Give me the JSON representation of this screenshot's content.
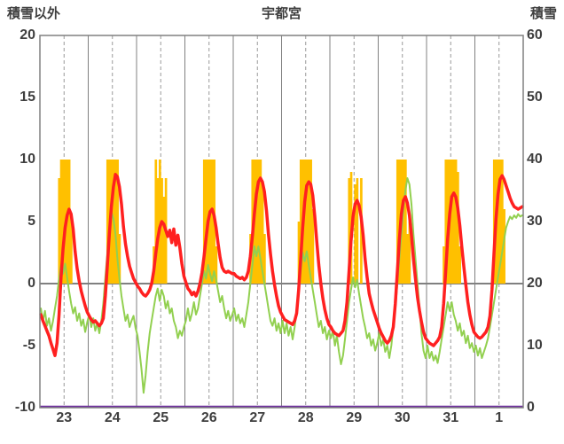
{
  "header": {
    "left_axis_title": "積雪以外",
    "title": "宇都宮",
    "right_axis_title": "積雪"
  },
  "chart_data": {
    "type": "line",
    "title": "宇都宮",
    "left_axis": {
      "label": "積雪以外",
      "min": -10,
      "max": 20,
      "ticks": [
        20,
        15,
        10,
        5,
        0,
        -5,
        -10
      ]
    },
    "right_axis": {
      "label": "積雪",
      "min": 0,
      "max": 60,
      "ticks": [
        60,
        50,
        40,
        30,
        20,
        10,
        0
      ]
    },
    "x_labels": [
      "23",
      "24",
      "25",
      "26",
      "27",
      "28",
      "29",
      "30",
      "31",
      "1"
    ],
    "hours_per_day": 24,
    "grid": {
      "line_color": "#808080",
      "dashed_color": "#999999",
      "zero_line": true,
      "horizontal_gridlines": false
    },
    "series": [
      {
        "name": "sunshine-bars",
        "type": "bar",
        "axis": "left",
        "color": "#FFC000",
        "values": [
          0,
          0,
          0,
          0,
          0,
          0,
          0,
          0,
          0,
          8.5,
          10,
          10,
          10,
          10,
          10,
          5,
          0,
          0,
          0,
          0,
          0,
          0,
          0,
          0,
          0,
          0,
          0,
          0,
          0,
          0,
          0,
          0,
          0,
          10,
          10,
          10,
          10,
          10,
          10,
          4,
          0,
          0,
          0,
          0,
          0,
          0,
          0,
          0,
          0,
          0,
          0,
          0,
          0,
          0,
          0,
          0,
          3,
          10,
          8.5,
          10,
          8.5,
          7,
          8.5,
          0,
          0,
          0,
          0,
          0,
          0,
          0,
          0,
          0,
          0,
          0,
          0,
          0,
          0,
          0,
          0,
          0,
          0,
          10,
          10,
          10,
          10,
          10,
          10,
          3,
          0,
          0,
          0,
          0,
          0,
          0,
          0,
          0,
          0,
          0,
          0,
          0,
          0,
          0,
          0,
          0,
          4,
          10,
          10,
          10,
          10,
          10,
          8,
          4,
          0,
          0,
          0,
          0,
          0,
          0,
          0,
          0,
          0,
          0,
          0,
          0,
          0,
          0,
          0,
          0,
          5,
          10,
          10,
          10,
          10,
          10,
          10,
          6,
          0,
          0,
          0,
          0,
          0,
          0,
          0,
          0,
          0,
          0,
          0,
          0,
          0,
          0,
          0,
          0,
          0,
          8.5,
          9,
          0,
          8,
          8.5,
          0,
          8.5,
          0,
          0,
          0,
          0,
          0,
          0,
          0,
          0,
          0,
          0,
          0,
          0,
          0,
          0,
          0,
          0,
          0,
          10,
          10,
          10,
          10,
          10,
          4,
          5,
          0,
          0,
          0,
          0,
          0,
          0,
          0,
          0,
          0,
          0,
          0,
          0,
          0,
          0,
          0,
          0,
          3,
          10,
          10,
          10,
          10,
          10,
          10,
          9,
          3,
          0,
          0,
          0,
          0,
          0,
          0,
          0,
          0,
          0,
          0,
          0,
          0,
          0,
          0,
          0,
          0,
          10,
          10,
          10,
          10,
          10,
          6,
          0,
          0,
          0,
          0,
          0,
          0,
          0,
          0,
          0
        ]
      },
      {
        "name": "green-line",
        "type": "line",
        "axis": "left",
        "color": "#92D050",
        "width": 2,
        "values": [
          -2.0,
          -3.0,
          -2.2,
          -3.4,
          -2.8,
          -3.8,
          -3.0,
          -2.0,
          -1.0,
          0.4,
          1.5,
          0.8,
          1.6,
          0.5,
          -0.6,
          -1.6,
          -2.4,
          -1.9,
          -3.0,
          -2.4,
          -3.4,
          -2.9,
          -3.9,
          -3.1,
          -2.5,
          -3.5,
          -2.8,
          -3.8,
          -3.2,
          -4.0,
          -3.0,
          -1.6,
          0.5,
          2.5,
          4.6,
          5.8,
          5.2,
          4.0,
          2.0,
          0.4,
          -1.0,
          -2.0,
          -3.0,
          -2.5,
          -3.5,
          -3.0,
          -2.6,
          -3.6,
          -4.2,
          -5.5,
          -7.0,
          -8.8,
          -7.4,
          -5.5,
          -4.0,
          -3.0,
          -2.0,
          -1.0,
          -0.4,
          -1.4,
          -0.5,
          -1.0,
          -2.0,
          -1.4,
          -2.4,
          -2.0,
          -3.0,
          -3.5,
          -4.4,
          -3.8,
          -4.2,
          -3.5,
          -3.0,
          -2.0,
          -3.0,
          -2.4,
          -1.5,
          -2.5,
          -2.0,
          -1.0,
          0.0,
          1.0,
          0.4,
          1.5,
          0.8,
          0.2,
          1.0,
          0.3,
          -0.6,
          -1.5,
          -1.0,
          -2.0,
          -2.8,
          -2.2,
          -3.0,
          -2.5,
          -2.0,
          -3.0,
          -2.5,
          -3.2,
          -2.8,
          -3.5,
          -2.5,
          -1.5,
          0.0,
          1.5,
          3.0,
          2.2,
          3.0,
          2.0,
          1.0,
          0.0,
          -1.0,
          -2.0,
          -3.0,
          -3.4,
          -2.8,
          -3.8,
          -3.2,
          -4.0,
          -3.0,
          -4.0,
          -3.2,
          -4.2,
          -3.5,
          -4.5,
          -3.5,
          -2.0,
          -0.5,
          1.0,
          2.5,
          1.8,
          2.6,
          1.5,
          0.5,
          -0.5,
          -1.5,
          -2.5,
          -3.5,
          -3.0,
          -4.0,
          -3.5,
          -4.5,
          -3.8,
          -4.4,
          -3.8,
          -5.0,
          -4.2,
          -5.5,
          -6.5,
          -5.8,
          -4.5,
          -3.0,
          -1.5,
          -0.5,
          0.5,
          -0.3,
          0.3,
          -0.8,
          -1.8,
          -2.8,
          -3.5,
          -4.4,
          -4.0,
          -5.0,
          -4.5,
          -5.4,
          -4.8,
          -4.0,
          -5.0,
          -4.5,
          -5.5,
          -5.0,
          -6.0,
          -5.0,
          -3.5,
          -2.0,
          0.0,
          2.0,
          4.0,
          6.0,
          7.5,
          8.5,
          8.0,
          6.4,
          4.0,
          2.0,
          0.0,
          -2.0,
          -4.0,
          -5.4,
          -6.0,
          -5.0,
          -6.0,
          -5.5,
          -6.2,
          -5.8,
          -6.4,
          -5.5,
          -4.5,
          -3.5,
          -2.5,
          -1.5,
          -2.2,
          -1.5,
          -2.5,
          -3.0,
          -3.8,
          -3.2,
          -4.2,
          -3.8,
          -4.8,
          -4.2,
          -5.2,
          -4.8,
          -5.5,
          -5.0,
          -5.8,
          -5.2,
          -6.0,
          -5.5,
          -5.0,
          -4.4,
          -3.5,
          -2.5,
          -1.5,
          -0.5,
          0.5,
          1.5,
          2.5,
          3.5,
          4.5,
          5.0,
          5.4,
          5.2,
          5.5,
          5.3,
          5.6,
          5.4,
          5.5
        ]
      },
      {
        "name": "temperature-line",
        "type": "line",
        "axis": "left",
        "color": "#FF2020",
        "width": 3.5,
        "values": [
          -2.5,
          -3.0,
          -3.4,
          -3.8,
          -4.2,
          -4.8,
          -5.3,
          -5.8,
          -4.8,
          -2.5,
          0.5,
          2.8,
          4.5,
          5.5,
          6.0,
          5.6,
          4.4,
          2.6,
          1.2,
          0.2,
          -0.6,
          -1.2,
          -1.8,
          -2.3,
          -2.6,
          -2.9,
          -3.1,
          -3.0,
          -3.2,
          -3.4,
          -3.2,
          -2.8,
          -1.0,
          1.5,
          4.0,
          6.2,
          7.8,
          8.8,
          8.6,
          7.8,
          6.4,
          4.6,
          3.2,
          2.2,
          1.4,
          0.9,
          0.4,
          0.1,
          -0.2,
          -0.4,
          -0.7,
          -0.9,
          -1.0,
          -0.8,
          -0.5,
          0.0,
          1.0,
          2.4,
          3.6,
          4.5,
          5.0,
          4.8,
          4.3,
          3.8,
          4.3,
          3.3,
          4.4,
          3.1,
          3.9,
          2.9,
          1.6,
          0.6,
          0.1,
          -0.4,
          -0.6,
          -0.9,
          -0.7,
          -1.0,
          -0.6,
          0.0,
          0.9,
          2.2,
          3.6,
          5.0,
          5.8,
          6.0,
          5.5,
          4.5,
          3.2,
          2.1,
          1.3,
          1.0,
          0.9,
          1.0,
          0.9,
          0.8,
          0.8,
          0.6,
          0.5,
          0.4,
          0.5,
          0.3,
          0.5,
          1.0,
          2.2,
          3.8,
          5.6,
          7.2,
          8.2,
          8.5,
          8.2,
          7.4,
          5.9,
          4.0,
          2.4,
          1.0,
          -0.1,
          -1.0,
          -1.8,
          -2.3,
          -2.6,
          -2.9,
          -3.0,
          -3.1,
          -3.2,
          -3.3,
          -3.0,
          -2.4,
          -0.5,
          2.0,
          4.5,
          6.6,
          7.9,
          8.2,
          8.0,
          7.1,
          5.4,
          3.4,
          1.5,
          0.0,
          -1.2,
          -2.1,
          -2.8,
          -3.3,
          -3.5,
          -3.8,
          -4.0,
          -4.1,
          -4.2,
          -4.0,
          -3.8,
          -3.0,
          -1.5,
          1.0,
          3.4,
          5.4,
          6.4,
          6.7,
          6.3,
          5.4,
          3.9,
          2.0,
          0.5,
          -0.8,
          -1.5,
          -2.1,
          -2.6,
          -3.1,
          -3.6,
          -4.0,
          -4.3,
          -4.6,
          -4.8,
          -4.6,
          -4.2,
          -3.5,
          -1.6,
          1.0,
          3.5,
          5.6,
          6.7,
          7.0,
          6.5,
          5.5,
          3.9,
          2.0,
          0.4,
          -1.1,
          -2.2,
          -3.1,
          -3.9,
          -4.4,
          -4.6,
          -4.8,
          -4.9,
          -5.0,
          -4.8,
          -4.6,
          -4.3,
          -3.5,
          -1.6,
          1.0,
          3.6,
          5.6,
          7.0,
          7.3,
          7.0,
          6.1,
          4.7,
          3.0,
          1.4,
          -0.1,
          -1.5,
          -2.5,
          -3.3,
          -3.9,
          -4.1,
          -4.3,
          -4.4,
          -4.3,
          -4.1,
          -3.9,
          -3.5,
          -2.6,
          -0.5,
          2.5,
          5.2,
          7.2,
          8.4,
          8.7,
          8.4,
          7.9,
          7.4,
          6.9,
          6.5,
          6.2,
          6.1,
          6.0,
          6.1,
          6.2
        ]
      },
      {
        "name": "snow-depth-line",
        "type": "line",
        "axis": "right",
        "color": "#7030A0",
        "width": 2.5,
        "constant_value": 0,
        "points": 240
      }
    ]
  }
}
